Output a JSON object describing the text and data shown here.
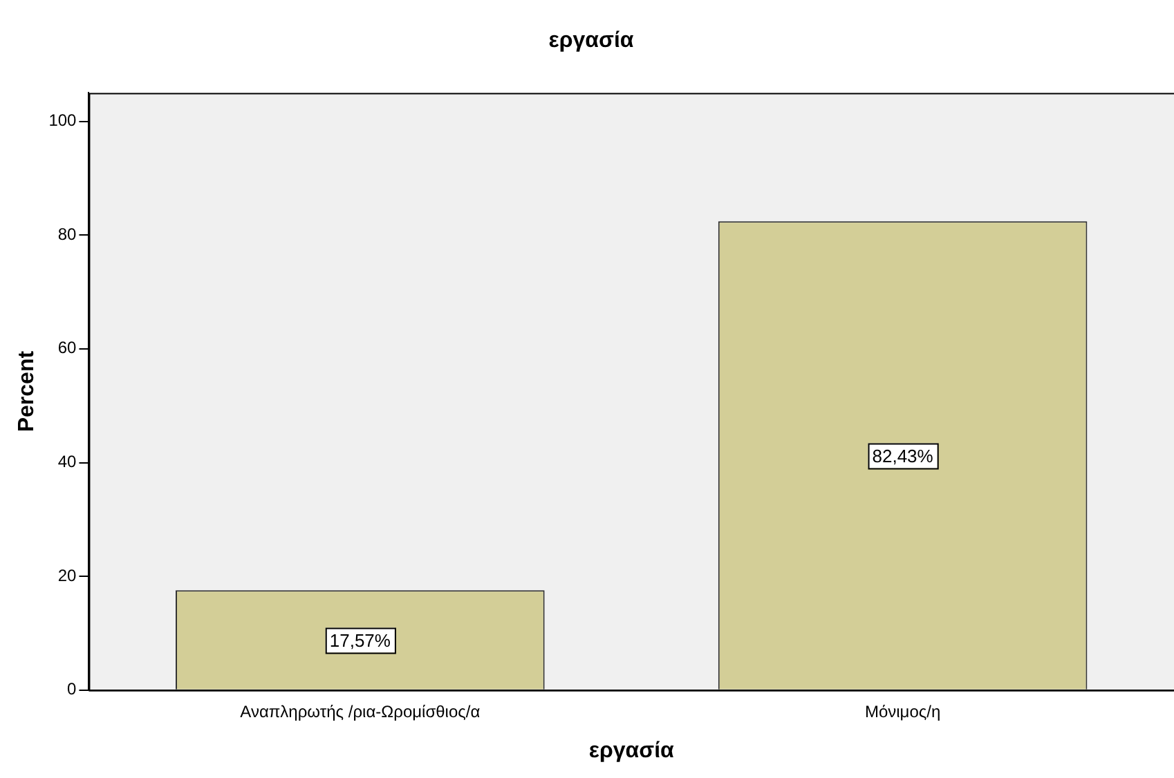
{
  "chart_data": {
    "type": "bar",
    "title": "εργασία",
    "xlabel": "εργασία",
    "ylabel": "Percent",
    "categories": [
      "Αναπληρωτής /ρια-Ωρομίσθιος/α",
      "Μόνιμος/η"
    ],
    "values": [
      17.57,
      82.43
    ],
    "value_labels": [
      "17,57%",
      "82,43%"
    ],
    "color": "#d3ce97",
    "ylim": [
      0,
      105
    ],
    "yticks": [
      0,
      20,
      40,
      60,
      80,
      100
    ],
    "grid": false,
    "legend": false
  }
}
